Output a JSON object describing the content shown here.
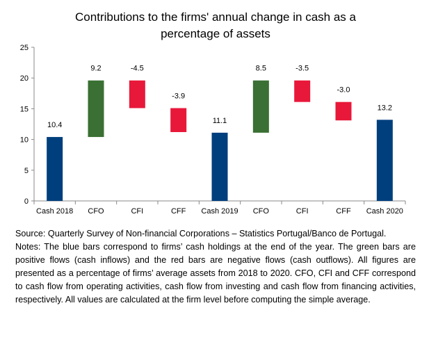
{
  "chart_data": {
    "type": "bar",
    "subtype": "waterfall",
    "title_line1": "Contributions to the firms' annual change in cash as a",
    "title_line2": "percentage of assets",
    "categories": [
      "Cash 2018",
      "CFO",
      "CFI",
      "CFF",
      "Cash 2019",
      "CFO",
      "CFI",
      "CFF",
      "Cash 2020"
    ],
    "labels": [
      "10.4",
      "9.2",
      "-4.5",
      "-3.9",
      "11.1",
      "8.5",
      "-3.5",
      "-3.0",
      "13.2"
    ],
    "bars": [
      {
        "base": 0,
        "top": 10.4,
        "kind": "total"
      },
      {
        "base": 10.4,
        "top": 19.6,
        "kind": "positive"
      },
      {
        "base": 19.6,
        "top": 15.1,
        "kind": "negative"
      },
      {
        "base": 15.1,
        "top": 11.2,
        "kind": "negative"
      },
      {
        "base": 0,
        "top": 11.1,
        "kind": "total"
      },
      {
        "base": 11.1,
        "top": 19.6,
        "kind": "positive"
      },
      {
        "base": 19.6,
        "top": 16.1,
        "kind": "negative"
      },
      {
        "base": 16.1,
        "top": 13.1,
        "kind": "negative"
      },
      {
        "base": 0,
        "top": 13.2,
        "kind": "total"
      }
    ],
    "ylim": [
      0,
      25
    ],
    "yticks": [
      0,
      5,
      10,
      15,
      20,
      25
    ],
    "colors": {
      "total": "#003f7d",
      "positive": "#3a7033",
      "negative": "#e8183a"
    }
  },
  "notes": {
    "source": "Source: Quarterly Survey of Non-financial Corporations – Statistics Portugal/Banco de Portugal.",
    "text": "Notes: The blue bars correspond to firms’ cash holdings at the end of the year. The green bars are positive flows (cash inflows) and the red bars are negative flows (cash outflows). All figures are presented as a percentage of firms’ average assets from 2018 to 2020. CFO, CFI and CFF correspond to cash flow from operating activities, cash flow from investing and cash flow from financing activities, respectively. All values are calculated at the firm level before computing the simple average."
  }
}
